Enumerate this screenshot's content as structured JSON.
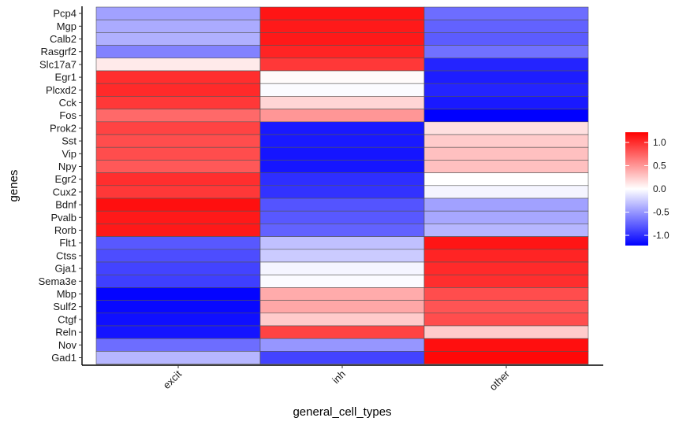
{
  "chart_data": {
    "type": "heatmap",
    "xlabel": "general_cell_types",
    "ylabel": "genes",
    "x": [
      "excit",
      "inh",
      "other"
    ],
    "y": [
      "Pcp4",
      "Mgp",
      "Calb2",
      "Rasgrf2",
      "Slc17a7",
      "Egr1",
      "Plcxd2",
      "Cck",
      "Fos",
      "Prok2",
      "Sst",
      "Vip",
      "Npy",
      "Egr2",
      "Cux2",
      "Bdnf",
      "Pvalb",
      "Rorb",
      "Flt1",
      "Ctss",
      "Gja1",
      "Sema3e",
      "Mbp",
      "Sulf2",
      "Ctgf",
      "Reln",
      "Nov",
      "Gad1"
    ],
    "values": [
      [
        -0.45,
        1.12,
        -0.7
      ],
      [
        -0.4,
        1.1,
        -0.75
      ],
      [
        -0.38,
        1.1,
        -0.78
      ],
      [
        -0.6,
        1.05,
        -0.68
      ],
      [
        0.1,
        0.95,
        -1.05
      ],
      [
        1.0,
        0.02,
        -1.08
      ],
      [
        1.02,
        -0.02,
        -1.05
      ],
      [
        0.95,
        0.2,
        -1.1
      ],
      [
        0.72,
        0.5,
        -1.22
      ],
      [
        0.9,
        -1.1,
        0.15
      ],
      [
        0.85,
        -1.1,
        0.25
      ],
      [
        0.85,
        -1.12,
        0.3
      ],
      [
        0.8,
        -1.12,
        0.3
      ],
      [
        1.0,
        -1.0,
        0.0
      ],
      [
        0.95,
        -0.98,
        -0.05
      ],
      [
        1.15,
        -0.82,
        -0.45
      ],
      [
        1.1,
        -0.8,
        -0.42
      ],
      [
        1.1,
        -0.75,
        -0.35
      ],
      [
        -0.8,
        -0.3,
        1.12
      ],
      [
        -0.85,
        -0.25,
        1.05
      ],
      [
        -0.9,
        -0.05,
        1.02
      ],
      [
        -0.92,
        -0.02,
        1.0
      ],
      [
        -1.2,
        0.4,
        0.85
      ],
      [
        -1.18,
        0.42,
        0.82
      ],
      [
        -1.15,
        0.25,
        0.85
      ],
      [
        -1.12,
        0.9,
        0.25
      ],
      [
        -0.7,
        -0.5,
        1.15
      ],
      [
        -0.35,
        -0.9,
        1.18
      ]
    ],
    "colorbar": {
      "low_color": "#0000ff",
      "mid_color": "#ffffff",
      "high_color": "#ff0000",
      "range": [
        -1.22,
        1.22
      ],
      "ticks": [
        1.0,
        0.5,
        0.0,
        -0.5,
        -1.0
      ],
      "tick_labels": [
        "1.0",
        "0.5",
        "0.0",
        "-0.5",
        "-1.0"
      ]
    }
  }
}
